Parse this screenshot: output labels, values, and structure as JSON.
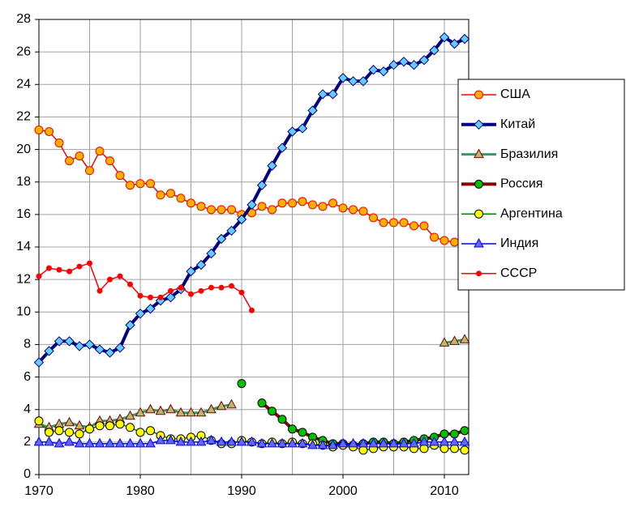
{
  "chart_data": {
    "type": "line",
    "x": [
      1970,
      1971,
      1972,
      1973,
      1974,
      1975,
      1976,
      1977,
      1978,
      1979,
      1980,
      1981,
      1982,
      1983,
      1984,
      1985,
      1986,
      1987,
      1988,
      1989,
      1990,
      1991,
      1992,
      1993,
      1994,
      1995,
      1996,
      1997,
      1998,
      1999,
      2000,
      2001,
      2002,
      2003,
      2004,
      2005,
      2006,
      2007,
      2008,
      2009,
      2010,
      2011,
      2012
    ],
    "xlim": [
      1970,
      2012.4
    ],
    "xticks": [
      1970,
      1980,
      1990,
      2000,
      2010
    ],
    "ylim": [
      0,
      28
    ],
    "yticks": [
      0,
      2,
      4,
      6,
      8,
      10,
      12,
      14,
      16,
      18,
      20,
      22,
      24,
      26,
      28
    ],
    "grid": true,
    "legend": "right",
    "series": [
      {
        "name": "США",
        "color": "#ff0000",
        "marker": "circle",
        "marker_color": "#ffb000",
        "values": [
          21.2,
          21.1,
          20.4,
          19.3,
          19.6,
          18.7,
          19.9,
          19.3,
          18.4,
          17.8,
          17.9,
          17.9,
          17.2,
          17.3,
          17.0,
          16.7,
          16.5,
          16.3,
          16.3,
          16.3,
          16.0,
          16.1,
          16.5,
          16.3,
          16.7,
          16.7,
          16.8,
          16.6,
          16.5,
          16.7,
          16.4,
          16.3,
          16.2,
          15.8,
          15.5,
          15.5,
          15.5,
          15.3,
          15.3,
          14.6,
          14.4,
          14.3,
          14.1
        ]
      },
      {
        "name": "Китай",
        "color": "#000080",
        "marker": "diamond",
        "marker_color": "#66ccff",
        "values": [
          6.9,
          7.6,
          8.2,
          8.2,
          7.9,
          8.0,
          7.7,
          7.5,
          7.8,
          9.2,
          9.9,
          10.2,
          10.7,
          10.9,
          11.4,
          12.5,
          12.9,
          13.6,
          14.5,
          15.0,
          15.7,
          16.6,
          17.8,
          19.0,
          20.1,
          21.1,
          21.3,
          22.4,
          23.4,
          23.4,
          24.4,
          24.2,
          24.2,
          24.9,
          24.8,
          25.2,
          25.4,
          25.2,
          25.5,
          26.1,
          26.9,
          26.5,
          26.8
        ]
      },
      {
        "name": "Бразилия",
        "color": "#339966",
        "marker": "triangle",
        "marker_color": "#b8b870",
        "values": [
          3.1,
          2.9,
          3.1,
          3.2,
          3.0,
          2.9,
          3.3,
          3.3,
          3.4,
          3.6,
          3.8,
          4.0,
          3.9,
          4.0,
          3.8,
          3.8,
          3.8,
          4.0,
          4.2,
          4.3,
          null,
          null,
          null,
          null,
          null,
          null,
          null,
          null,
          null,
          null,
          null,
          null,
          null,
          null,
          null,
          null,
          null,
          null,
          null,
          null,
          8.1,
          8.2,
          8.3
        ]
      },
      {
        "name": "Россия",
        "color": "#800000",
        "marker": "circle",
        "marker_color": "#00c000",
        "values": [
          null,
          null,
          null,
          null,
          null,
          null,
          null,
          null,
          null,
          null,
          null,
          null,
          null,
          null,
          null,
          null,
          null,
          null,
          null,
          null,
          5.6,
          null,
          4.4,
          3.9,
          3.4,
          2.8,
          2.6,
          2.3,
          2.1,
          1.9,
          1.9,
          1.8,
          1.9,
          2.0,
          2.0,
          1.9,
          2.0,
          2.1,
          2.2,
          2.3,
          2.5,
          2.5,
          2.7
        ]
      },
      {
        "name": "Аргентина",
        "color": "#008000",
        "marker": "circle",
        "marker_color": "#ffff00",
        "values": [
          3.3,
          2.6,
          2.7,
          2.6,
          2.5,
          2.8,
          3.0,
          3.0,
          3.1,
          2.9,
          2.6,
          2.7,
          2.4,
          2.2,
          2.2,
          2.3,
          2.4,
          2.1,
          1.9,
          1.9,
          2.1,
          2.0,
          1.9,
          2.0,
          1.9,
          2.0,
          1.9,
          1.9,
          1.8,
          1.7,
          1.8,
          1.7,
          1.5,
          1.6,
          1.7,
          1.7,
          1.7,
          1.6,
          1.6,
          1.8,
          1.6,
          1.6,
          1.5
        ]
      },
      {
        "name": "Индия",
        "color": "#0000ff",
        "marker": "triangle",
        "marker_color": "#6666ff",
        "values": [
          2.0,
          2.0,
          1.9,
          2.0,
          1.9,
          1.9,
          1.9,
          1.9,
          1.9,
          1.9,
          1.9,
          1.9,
          2.1,
          2.1,
          2.0,
          2.0,
          2.0,
          2.1,
          2.0,
          2.0,
          2.0,
          2.0,
          1.9,
          1.9,
          1.9,
          1.9,
          1.9,
          1.8,
          1.8,
          1.8,
          1.9,
          1.9,
          1.9,
          1.9,
          1.9,
          1.9,
          1.9,
          1.9,
          2.0,
          2.0,
          2.0,
          2.0,
          2.0
        ]
      },
      {
        "name": "СССР",
        "color": "#ff0000",
        "marker": "dot",
        "marker_color": "#ff0000",
        "values": [
          12.2,
          12.7,
          12.6,
          12.5,
          12.8,
          13.0,
          11.3,
          12.0,
          12.2,
          11.7,
          11.0,
          10.9,
          10.9,
          11.3,
          11.5,
          11.1,
          11.3,
          11.5,
          11.5,
          11.6,
          11.2,
          10.1,
          null,
          null,
          null,
          null,
          null,
          null,
          null,
          null,
          null,
          null,
          null,
          null,
          null,
          null,
          null,
          null,
          null,
          null,
          null,
          null,
          null
        ]
      }
    ]
  }
}
